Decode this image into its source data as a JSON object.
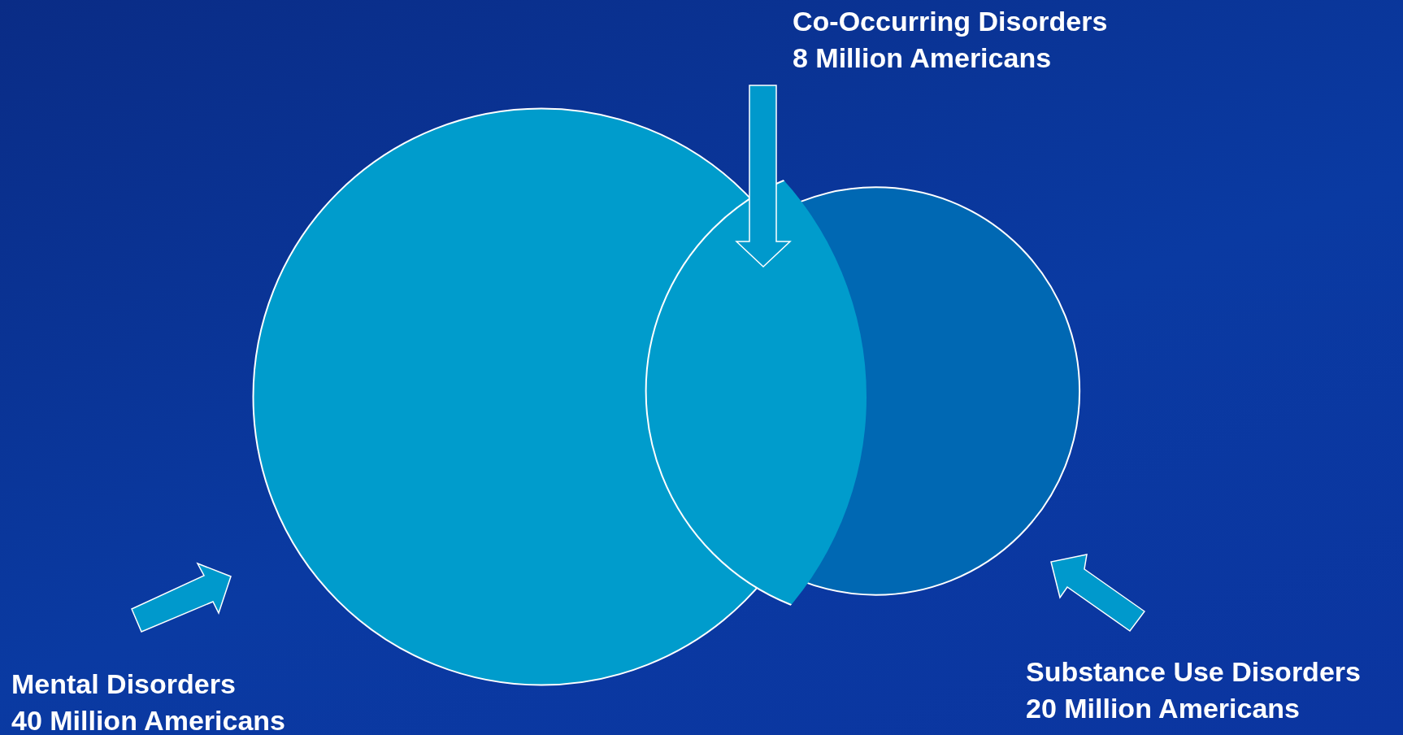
{
  "chart_data": {
    "type": "other",
    "categories": [
      "Mental Disorders",
      "Substance Use Disorders",
      "Co-Occurring Disorders"
    ],
    "values": [
      40,
      20,
      8
    ],
    "value_labels": [
      "40 Million Americans",
      "20 Million Americans",
      "8 Million Americans"
    ],
    "colors": [
      "#009ccc",
      "#0068b3",
      "#009ccc"
    ]
  }
}
